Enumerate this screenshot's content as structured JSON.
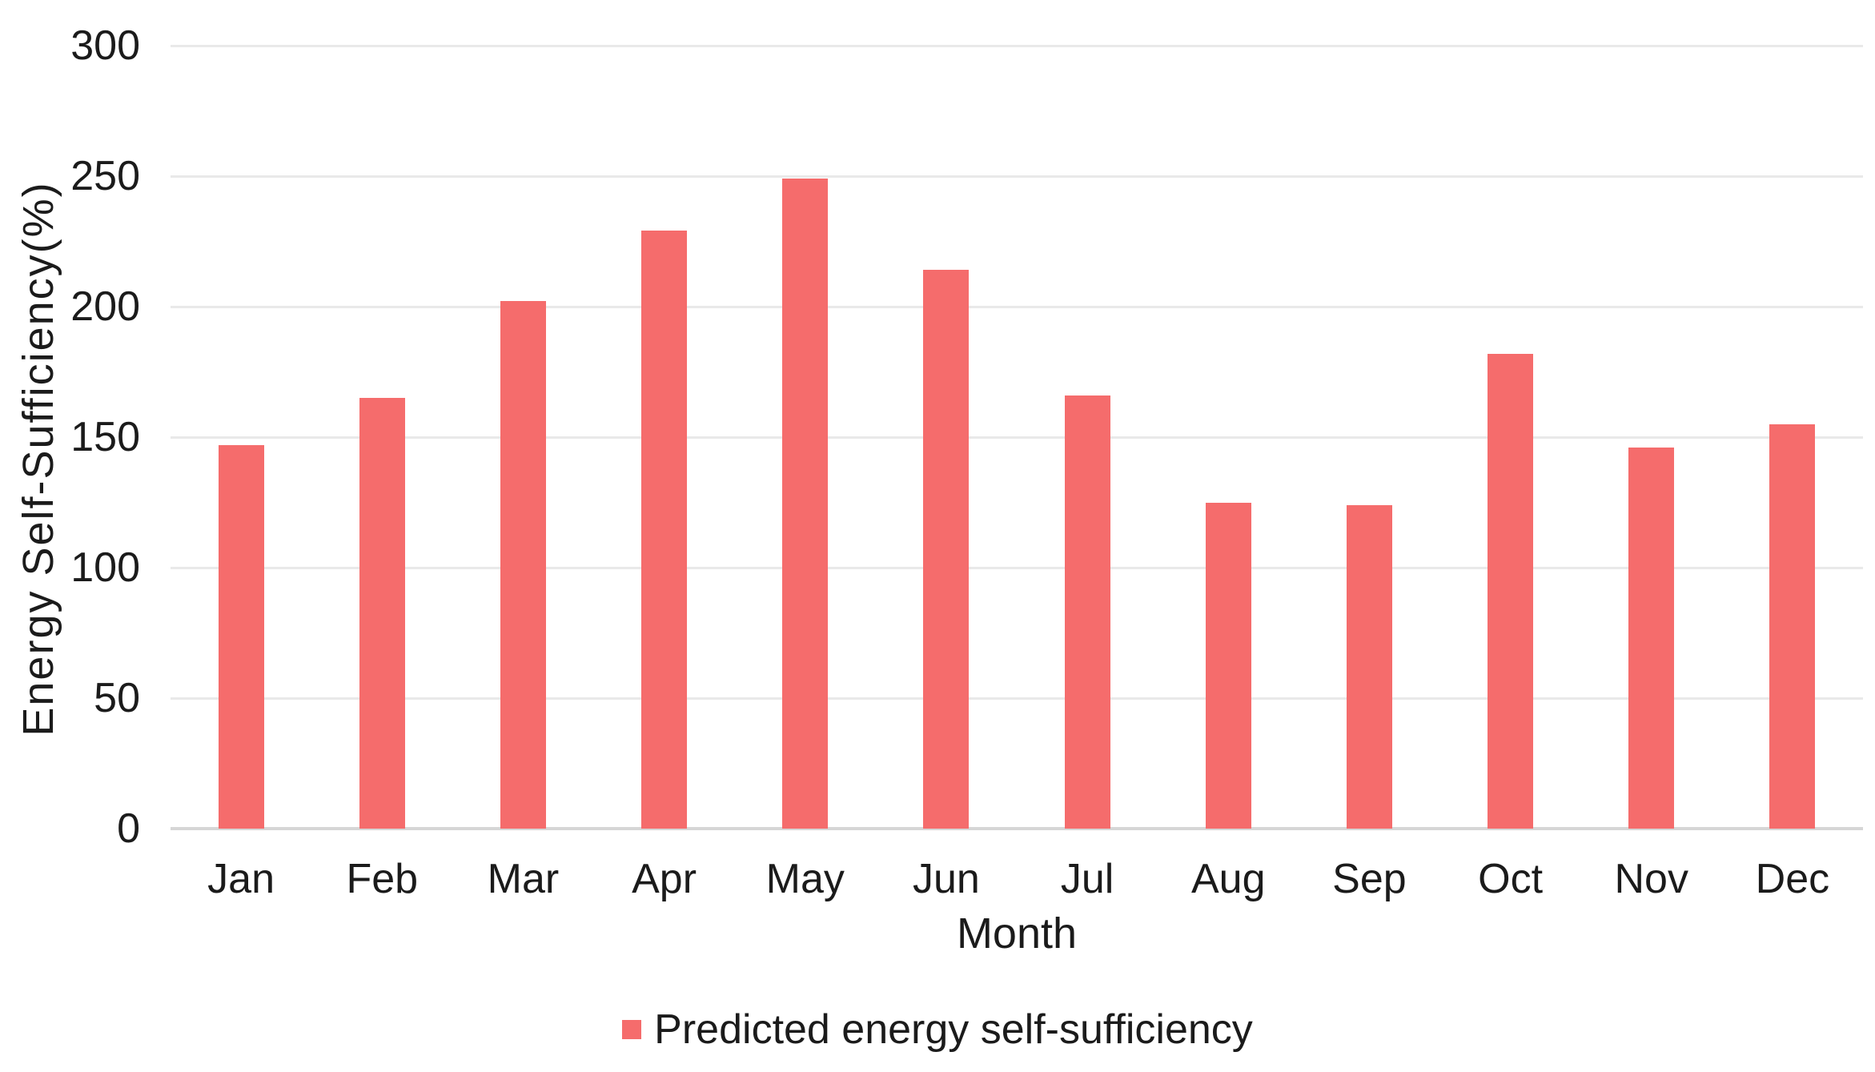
{
  "chart_data": {
    "type": "bar",
    "categories": [
      "Jan",
      "Feb",
      "Mar",
      "Apr",
      "May",
      "Jun",
      "Jul",
      "Aug",
      "Sep",
      "Oct",
      "Nov",
      "Dec"
    ],
    "series": [
      {
        "name": "Predicted energy self-sufficiency",
        "values": [
          147,
          165,
          202,
          229,
          249,
          214,
          166,
          125,
          124,
          182,
          146,
          155
        ]
      }
    ],
    "title": "",
    "xlabel": "Month",
    "ylabel": "Energy Self-Sufficiency(%)",
    "ylim": [
      0,
      300
    ],
    "yticks": [
      0,
      50,
      100,
      150,
      200,
      250,
      300
    ],
    "grid": true,
    "legend_position": "bottom"
  },
  "colors": {
    "bar": "#F56C6C",
    "gridline": "#E9E9E9",
    "axis_baseline": "#D6D6D6",
    "text": "#1B1B1B",
    "background": "#FFFFFF"
  }
}
